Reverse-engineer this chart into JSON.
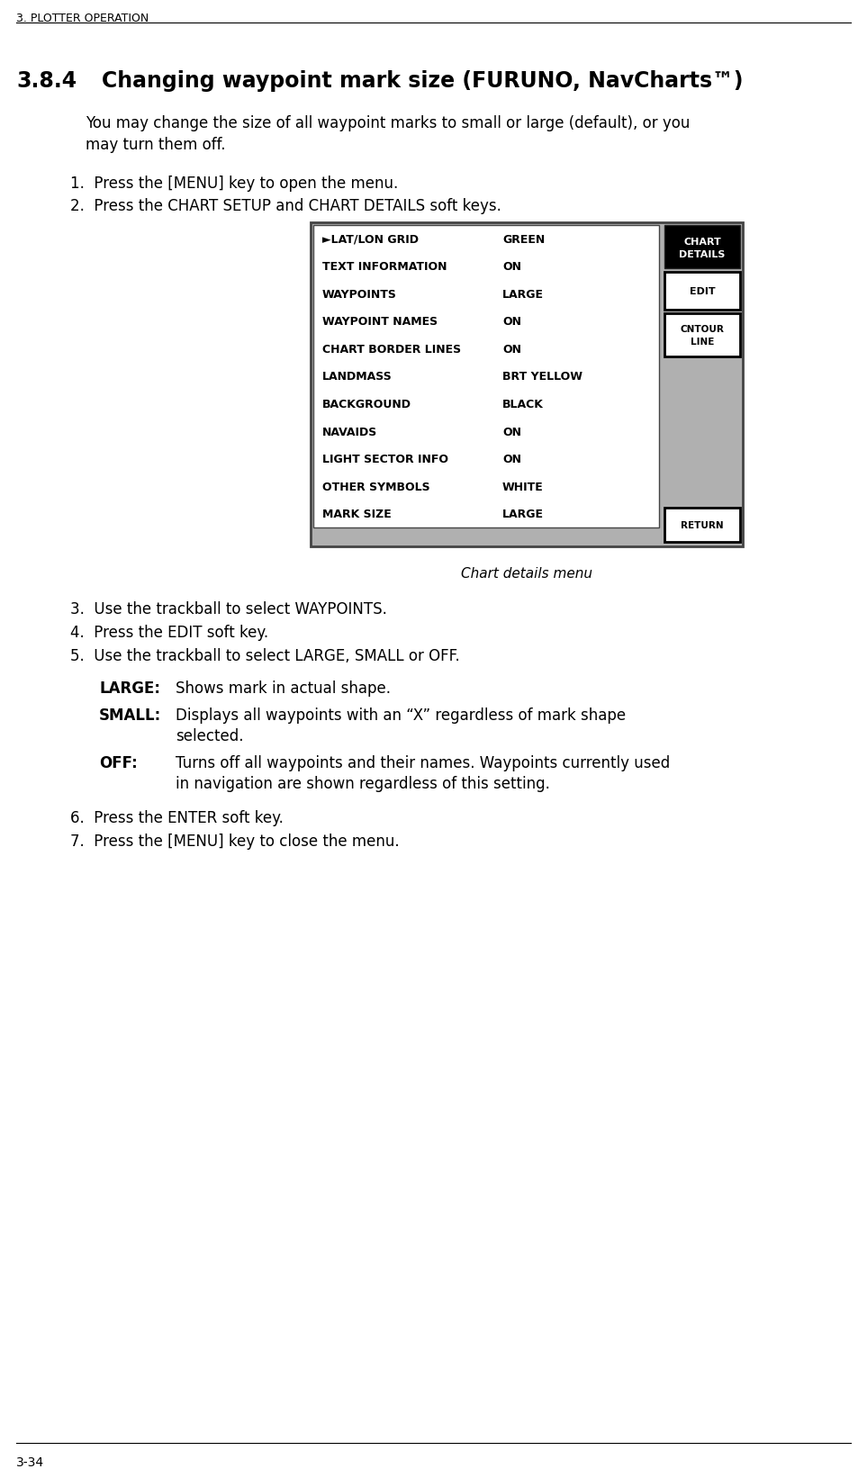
{
  "page_header": "3. PLOTTER OPERATION",
  "section_num": "3.8.4",
  "section_title": "Changing waypoint mark size (FURUNO, NavCharts™)",
  "intro_line1": "You may change the size of all waypoint marks to small or large (default), or you",
  "intro_line2": "may turn them off.",
  "step1": "1.  Press the [MENU] key to open the menu.",
  "step2": "2.  Press the CHART SETUP and CHART DETAILS soft keys.",
  "menu_rows": [
    [
      "►LAT/LON GRID",
      "GREEN"
    ],
    [
      "TEXT INFORMATION",
      "ON"
    ],
    [
      "WAYPOINTS",
      "LARGE"
    ],
    [
      "WAYPOINT NAMES",
      "ON"
    ],
    [
      "CHART BORDER LINES",
      "ON"
    ],
    [
      "LANDMASS",
      "BRT YELLOW"
    ],
    [
      "BACKGROUND",
      "BLACK"
    ],
    [
      "NAVAIDS",
      "ON"
    ],
    [
      "LIGHT SECTOR INFO",
      "ON"
    ],
    [
      "OTHER SYMBOLS",
      "WHITE"
    ],
    [
      "MARK SIZE",
      "LARGE"
    ]
  ],
  "caption": "Chart details menu",
  "step3": "3.  Use the trackball to select WAYPOINTS.",
  "step4": "4.  Press the EDIT soft key.",
  "step5": "5.  Use the trackball to select LARGE, SMALL or OFF.",
  "desc_large_label": "LARGE:",
  "desc_large_text": "Shows mark in actual shape.",
  "desc_small_label": "SMALL:",
  "desc_small_text1": "Displays all waypoints with an “X” regardless of mark shape",
  "desc_small_text2": "selected.",
  "desc_off_label": "OFF:",
  "desc_off_text1": "Turns off all waypoints and their names. Waypoints currently used",
  "desc_off_text2": "in navigation are shown regardless of this setting.",
  "step6": "6.  Press the ENTER soft key.",
  "step7": "7.  Press the [MENU] key to close the menu.",
  "footer": "3-34",
  "bg_color": "#ffffff"
}
